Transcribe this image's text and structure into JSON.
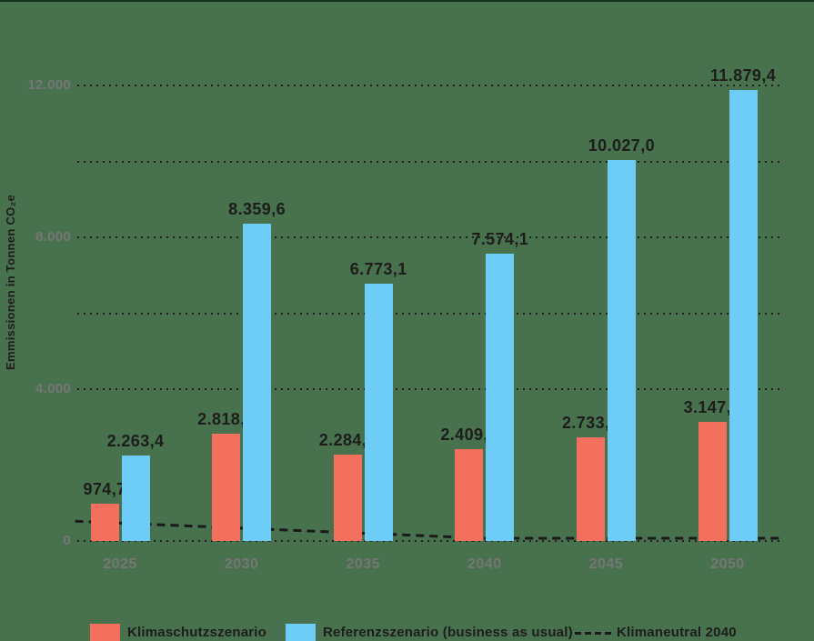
{
  "chart_data": {
    "type": "bar",
    "title": "",
    "ylabel": "Emmissionen in Tonnen CO₂e",
    "categories": [
      "2025",
      "2030",
      "2035",
      "2040",
      "2045",
      "2050"
    ],
    "series": [
      {
        "name": "Klimaschutzszenario",
        "color": "#F3705E",
        "values": [
          974.7,
          2818.5,
          2284.1,
          2409.6,
          2733.8,
          3147.9
        ],
        "labels": [
          "974,7",
          "2.818,5",
          "2.284,1",
          "2.409,6",
          "2.733,8",
          "3.147,9"
        ]
      },
      {
        "name": "Referenzszenario (business as usual)",
        "color": "#6DCDF6",
        "values": [
          2263.4,
          8359.6,
          6773.1,
          7574.1,
          10027.0,
          11879.4
        ],
        "labels": [
          "2.263,4",
          "8.359,6",
          "6.773,1",
          "7.574,1",
          "10.027,0",
          "11.879,4"
        ]
      }
    ],
    "line_series": {
      "name": "Klimaneutral 2040",
      "style": "dashed",
      "color": "#1A1A1A",
      "points": [
        {
          "x": -0.37,
          "value": 450
        },
        {
          "x": 3.0,
          "value": 0
        },
        {
          "x": 5.45,
          "value": 0
        }
      ]
    },
    "y_axis": {
      "max": 12000,
      "ticks": [
        {
          "value": 0,
          "label": "0"
        },
        {
          "value": 4000,
          "label": "4.000"
        },
        {
          "value": 8000,
          "label": "8.000"
        },
        {
          "value": 12000,
          "label": "12.000"
        }
      ],
      "gridline_values": [
        0,
        4000,
        6000,
        8000,
        10000,
        12000
      ]
    },
    "legend_position": "bottom",
    "grid": true
  },
  "legend": {
    "items": [
      {
        "label": "Klimaschutzszenario",
        "swatch": "square",
        "color": "#F3705E"
      },
      {
        "label": "Referenzszenario (business as usual)",
        "swatch": "square",
        "color": "#6DCDF6"
      },
      {
        "label": "Klimaneutral 2040",
        "swatch": "dashed-line",
        "color": "#1A1A1A"
      }
    ]
  },
  "colors": {
    "background": "#48714E",
    "bar_red": "#F3705E",
    "bar_blue": "#6DCDF6",
    "grid": "#1F1F1F",
    "tick_text": "#767676",
    "value_text": "#1D1D1B"
  }
}
